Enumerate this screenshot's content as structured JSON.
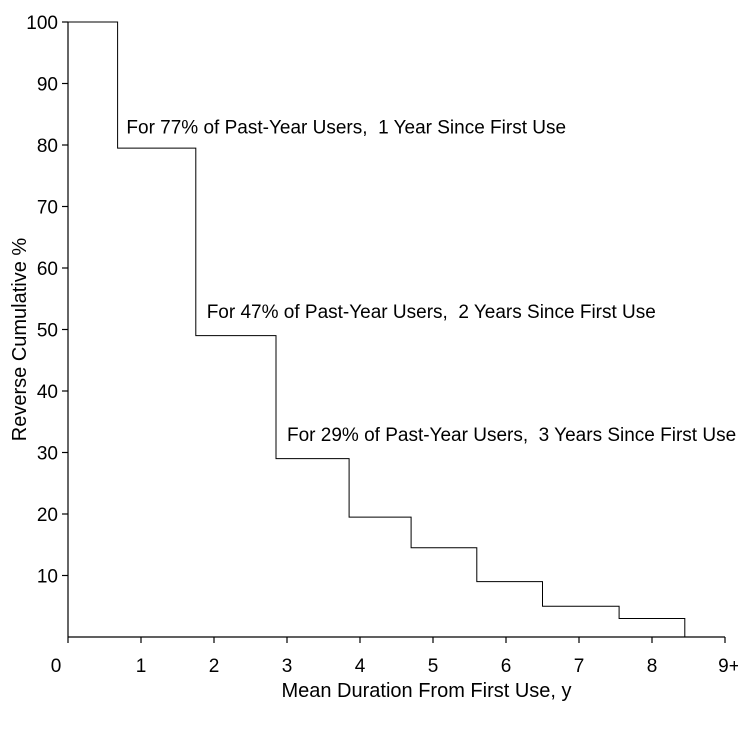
{
  "chart_data": {
    "type": "line",
    "step": true,
    "xlabel": "Mean Duration From First Use, y",
    "ylabel": "Reverse Cumulative %",
    "xlim": [
      0,
      9
    ],
    "ylim": [
      0,
      100
    ],
    "x_ticks": [
      "0",
      "1",
      "2",
      "3",
      "4",
      "5",
      "6",
      "7",
      "8",
      "9+"
    ],
    "y_ticks": [
      "10",
      "20",
      "30",
      "40",
      "50",
      "60",
      "70",
      "80",
      "90",
      "100"
    ],
    "grid": false,
    "series": [
      {
        "points": [
          {
            "x": 0,
            "y": 100
          },
          {
            "x": 0.68,
            "y": 100
          },
          {
            "x": 0.68,
            "y": 79.5
          },
          {
            "x": 1.75,
            "y": 79.5
          },
          {
            "x": 1.75,
            "y": 49
          },
          {
            "x": 2.85,
            "y": 49
          },
          {
            "x": 2.85,
            "y": 29
          },
          {
            "x": 3.85,
            "y": 29
          },
          {
            "x": 3.85,
            "y": 19.5
          },
          {
            "x": 4.7,
            "y": 19.5
          },
          {
            "x": 4.7,
            "y": 14.5
          },
          {
            "x": 5.6,
            "y": 14.5
          },
          {
            "x": 5.6,
            "y": 9
          },
          {
            "x": 6.5,
            "y": 9
          },
          {
            "x": 6.5,
            "y": 5
          },
          {
            "x": 7.55,
            "y": 5
          },
          {
            "x": 7.55,
            "y": 3
          },
          {
            "x": 8.45,
            "y": 3
          },
          {
            "x": 8.45,
            "y": 0
          },
          {
            "x": 8.95,
            "y": 0
          }
        ]
      }
    ],
    "annotations": [
      {
        "text": "For 77% of Past-Year Users,  1 Year Since First Use",
        "x": 0.8,
        "y": 83
      },
      {
        "text": "For 47% of Past-Year Users,  2 Years Since First Use",
        "x": 1.9,
        "y": 53
      },
      {
        "text": "For 29% of Past-Year Users,  3 Years Since First Use",
        "x": 3.0,
        "y": 33
      }
    ]
  }
}
